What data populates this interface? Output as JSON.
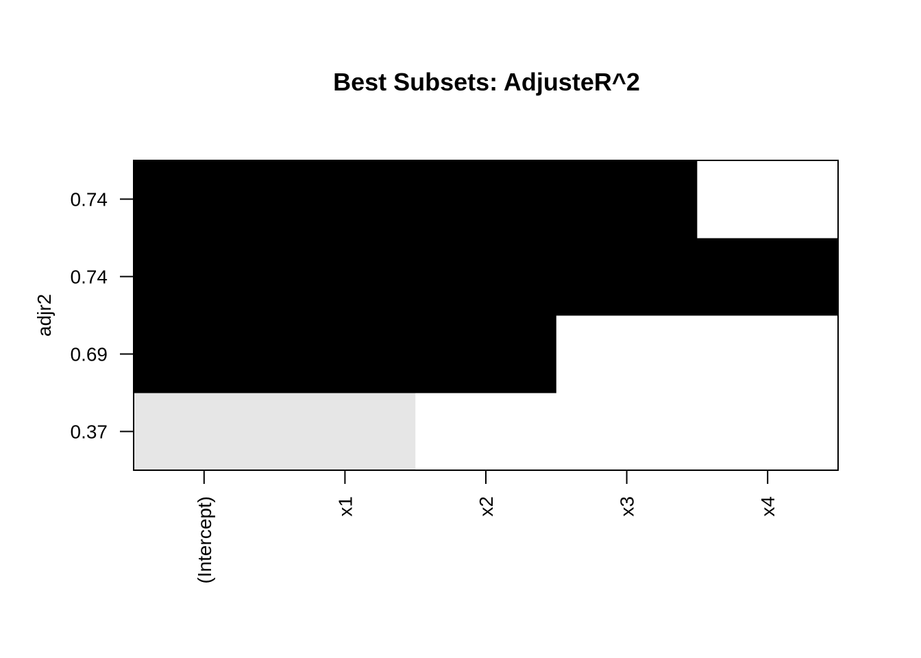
{
  "chart_data": {
    "type": "heatmap",
    "title": "Best Subsets: AdjusteR^2",
    "xlabel": "",
    "ylabel": "adjr2",
    "columns": [
      "(Intercept)",
      "x1",
      "x2",
      "x3",
      "x4"
    ],
    "rows": [
      {
        "label": "0.37",
        "included": [
          1,
          1,
          0,
          0,
          0
        ],
        "shade": "#e6e6e6"
      },
      {
        "label": "0.69",
        "included": [
          1,
          1,
          1,
          0,
          0
        ],
        "shade": "#000000"
      },
      {
        "label": "0.74",
        "included": [
          1,
          1,
          1,
          1,
          1
        ],
        "shade": "#000000"
      },
      {
        "label": "0.74",
        "included": [
          1,
          1,
          1,
          1,
          0
        ],
        "shade": "#000000"
      }
    ],
    "empty_color": "#ffffff"
  }
}
